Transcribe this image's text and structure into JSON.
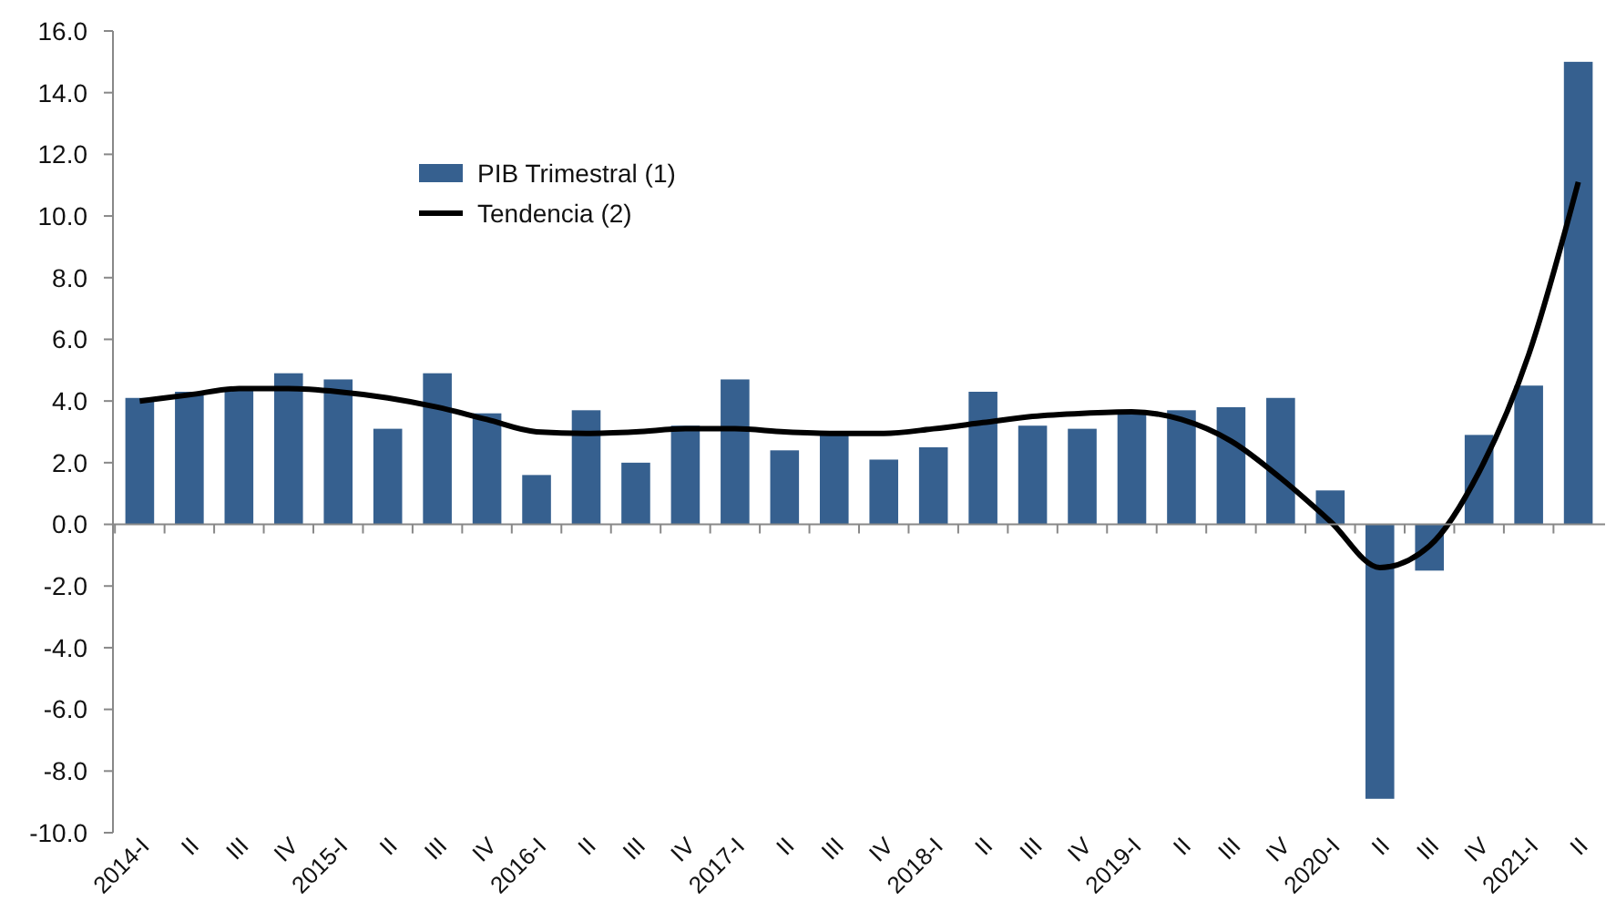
{
  "chart_data": {
    "type": "bar",
    "categories": [
      "2014-I",
      "II",
      "III",
      "IV",
      "2015-I",
      "II",
      "III",
      "IV",
      "2016-I",
      "II",
      "III",
      "IV",
      "2017-I",
      "II",
      "III",
      "IV",
      "2018-I",
      "II",
      "III",
      "IV",
      "2019-I",
      "II",
      "III",
      "IV",
      "2020-I",
      "II",
      "III",
      "IV",
      "2021-I",
      "II"
    ],
    "series": [
      {
        "name": "PIB Trimestral (1)",
        "color": "#36608f",
        "values": [
          4.1,
          4.3,
          4.4,
          4.9,
          4.7,
          3.1,
          4.9,
          3.6,
          1.6,
          3.7,
          2.0,
          3.2,
          4.7,
          2.4,
          3.0,
          2.1,
          2.5,
          4.3,
          3.2,
          3.1,
          3.7,
          3.7,
          3.8,
          4.1,
          1.1,
          -8.9,
          -1.5,
          2.9,
          4.5,
          15.0
        ]
      },
      {
        "name": "Tendencia (2)",
        "type": "line",
        "color": "#000000",
        "values": [
          4.0,
          4.2,
          4.4,
          4.4,
          4.3,
          4.1,
          3.8,
          3.4,
          3.0,
          2.95,
          3.0,
          3.1,
          3.1,
          3.0,
          2.95,
          2.95,
          3.1,
          3.3,
          3.5,
          3.6,
          3.65,
          3.4,
          2.7,
          1.5,
          0.1,
          -1.4,
          -0.7,
          1.7,
          5.5,
          11.1
        ]
      }
    ],
    "ylim": [
      -10,
      16
    ],
    "yticks": [
      {
        "value": -10,
        "label": "-10.0"
      },
      {
        "value": -8,
        "label": "-8.0"
      },
      {
        "value": -6,
        "label": "-6.0"
      },
      {
        "value": -4,
        "label": "-4.0"
      },
      {
        "value": -2,
        "label": "-2.0"
      },
      {
        "value": 0,
        "label": "0.0"
      },
      {
        "value": 2,
        "label": "2.0"
      },
      {
        "value": 4,
        "label": "4.0"
      },
      {
        "value": 6,
        "label": "6.0"
      },
      {
        "value": 8,
        "label": "8.0"
      },
      {
        "value": 10,
        "label": "10.0"
      },
      {
        "value": 12,
        "label": "12.0"
      },
      {
        "value": 14,
        "label": "14.0"
      },
      {
        "value": 16,
        "label": "16.0"
      }
    ],
    "legend": "top left",
    "marker": "none",
    "line_style": "solid"
  }
}
